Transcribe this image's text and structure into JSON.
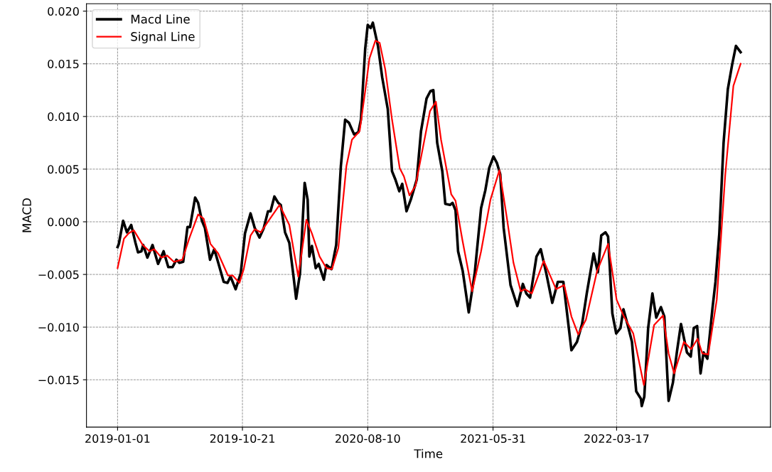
{
  "chart_data": {
    "type": "line",
    "xlabel": "Time",
    "ylabel": "MACD",
    "xlim": [
      "2018-10-20",
      "2023-03-13"
    ],
    "xticks": [
      "2019-01-01",
      "2019-10-21",
      "2020-08-10",
      "2021-05-31",
      "2022-03-17"
    ],
    "ylim": [
      -0.0195,
      0.0207
    ],
    "yticks": [
      {
        "value": -0.015,
        "label": "−0.015"
      },
      {
        "value": -0.01,
        "label": "−0.010"
      },
      {
        "value": -0.005,
        "label": "−0.005"
      },
      {
        "value": 0,
        "label": "0.000"
      },
      {
        "value": 0.005,
        "label": "0.005"
      },
      {
        "value": 0.01,
        "label": "0.010"
      },
      {
        "value": 0.015,
        "label": "0.015"
      },
      {
        "value": 0.02,
        "label": "0.020"
      }
    ],
    "grid": true,
    "legend": "top left",
    "line_style": "solid",
    "series": [
      {
        "name": "Macd Line",
        "color": "#000000",
        "x": [
          "2019-01-01",
          "2019-01-04",
          "2019-01-14",
          "2019-01-23",
          "2019-02-02",
          "2019-02-12",
          "2019-02-18",
          "2019-02-26",
          "2019-03-02",
          "2019-03-12",
          "2019-03-24",
          "2019-04-06",
          "2019-04-19",
          "2019-04-30",
          "2019-05-10",
          "2019-05-19",
          "2019-05-26",
          "2019-06-04",
          "2019-06-14",
          "2019-06-20",
          "2019-07-02",
          "2019-07-09",
          "2019-07-18",
          "2019-07-25",
          "2019-08-06",
          "2019-08-16",
          "2019-08-26",
          "2019-09-07",
          "2019-09-16",
          "2019-09-23",
          "2019-10-05",
          "2019-10-17",
          "2019-10-27",
          "2019-11-09",
          "2019-11-19",
          "2019-11-30",
          "2019-12-10",
          "2019-12-20",
          "2019-12-26",
          "2020-01-04",
          "2020-01-13",
          "2020-01-19",
          "2020-01-29",
          "2020-02-08",
          "2020-02-17",
          "2020-02-24",
          "2020-03-04",
          "2020-03-15",
          "2020-03-22",
          "2020-03-26",
          "2020-04-01",
          "2020-04-10",
          "2020-04-17",
          "2020-04-29",
          "2020-05-05",
          "2020-05-17",
          "2020-05-28",
          "2020-06-08",
          "2020-06-18",
          "2020-06-27",
          "2020-07-09",
          "2020-07-19",
          "2020-07-25",
          "2020-08-04",
          "2020-08-10",
          "2020-08-17",
          "2020-08-22",
          "2020-09-03",
          "2020-09-13",
          "2020-09-26",
          "2020-10-06",
          "2020-10-14",
          "2020-10-23",
          "2020-10-30",
          "2020-11-09",
          "2020-11-19",
          "2020-12-03",
          "2020-12-13",
          "2020-12-26",
          "2021-01-04",
          "2021-01-11",
          "2021-01-20",
          "2021-02-01",
          "2021-02-08",
          "2021-02-19",
          "2021-02-25",
          "2021-03-04",
          "2021-03-10",
          "2021-03-21",
          "2021-04-04",
          "2021-04-18",
          "2021-05-03",
          "2021-05-13",
          "2021-05-22",
          "2021-06-01",
          "2021-06-09",
          "2021-06-17",
          "2021-06-25",
          "2021-07-11",
          "2021-07-27",
          "2021-08-09",
          "2021-08-17",
          "2021-08-26",
          "2021-09-10",
          "2021-09-20",
          "2021-10-03",
          "2021-10-17",
          "2021-10-30",
          "2021-11-12",
          "2021-12-01",
          "2021-12-14",
          "2021-12-26",
          "2022-01-06",
          "2022-01-22",
          "2022-02-01",
          "2022-02-09",
          "2022-02-19",
          "2022-02-25",
          "2022-03-07",
          "2022-03-16",
          "2022-03-26",
          "2022-04-02",
          "2022-04-12",
          "2022-04-22",
          "2022-05-02",
          "2022-05-13",
          "2022-05-15",
          "2022-05-21",
          "2022-05-30",
          "2022-06-09",
          "2022-06-18",
          "2022-06-29",
          "2022-07-07",
          "2022-07-17",
          "2022-07-27",
          "2022-08-06",
          "2022-08-15",
          "2022-08-29",
          "2022-09-07",
          "2022-09-14",
          "2022-09-22",
          "2022-09-30",
          "2022-10-07",
          "2022-10-16",
          "2022-10-28",
          "2022-11-04",
          "2022-11-13",
          "2022-11-23",
          "2022-12-03",
          "2022-12-13",
          "2022-12-22",
          "2023-01-02"
        ],
        "values": [
          -0.0024,
          -0.0021,
          0.0001,
          -0.001,
          -0.0003,
          -0.002,
          -0.0029,
          -0.0028,
          -0.0022,
          -0.0034,
          -0.0022,
          -0.004,
          -0.0028,
          -0.0043,
          -0.0043,
          -0.0036,
          -0.0039,
          -0.0038,
          -0.0005,
          -0.0005,
          0.0023,
          0.0018,
          0.0001,
          -0.0006,
          -0.0036,
          -0.0026,
          -0.004,
          -0.0057,
          -0.0058,
          -0.0052,
          -0.0064,
          -0.0049,
          -0.0011,
          0.0008,
          -0.0006,
          -0.0015,
          -0.0006,
          0.001,
          0.001,
          0.0024,
          0.0018,
          0.0016,
          -0.001,
          -0.002,
          -0.0049,
          -0.0073,
          -0.0049,
          0.0037,
          0.0021,
          -0.0033,
          -0.0023,
          -0.0044,
          -0.004,
          -0.0055,
          -0.0041,
          -0.0045,
          -0.0022,
          0.0053,
          0.0097,
          0.0094,
          0.0083,
          0.0085,
          0.0097,
          0.0164,
          0.0187,
          0.0184,
          0.0189,
          0.0167,
          0.0137,
          0.0107,
          0.0048,
          0.004,
          0.0029,
          0.0036,
          0.001,
          0.0021,
          0.004,
          0.0086,
          0.0117,
          0.0124,
          0.0125,
          0.0075,
          0.0048,
          0.0017,
          0.0016,
          0.0018,
          0.0011,
          -0.0028,
          -0.0047,
          -0.0086,
          -0.0049,
          0.0013,
          0.003,
          0.0051,
          0.0062,
          0.0056,
          0.0045,
          -0.0006,
          -0.006,
          -0.008,
          -0.0059,
          -0.0068,
          -0.0072,
          -0.0033,
          -0.0026,
          -0.0049,
          -0.0077,
          -0.0057,
          -0.0057,
          -0.0122,
          -0.0114,
          -0.0097,
          -0.0068,
          -0.003,
          -0.0048,
          -0.0013,
          -0.001,
          -0.0014,
          -0.0087,
          -0.0106,
          -0.0101,
          -0.0083,
          -0.0098,
          -0.0114,
          -0.0161,
          -0.0168,
          -0.0175,
          -0.0166,
          -0.0101,
          -0.0068,
          -0.0091,
          -0.0081,
          -0.009,
          -0.017,
          -0.0153,
          -0.0122,
          -0.0097,
          -0.0124,
          -0.0128,
          -0.0101,
          -0.0099,
          -0.0144,
          -0.0124,
          -0.013,
          -0.0082,
          -0.0057,
          -0.0011,
          0.0075,
          0.0126,
          0.0149,
          0.0167,
          0.0161
        ]
      },
      {
        "name": "Signal Line",
        "color": "#ff0000",
        "x": [
          "2019-01-01",
          "2019-01-16",
          "2019-01-27",
          "2019-02-08",
          "2019-03-01",
          "2019-03-17",
          "2019-03-28",
          "2019-04-14",
          "2019-04-27",
          "2019-05-13",
          "2019-06-02",
          "2019-06-18",
          "2019-07-09",
          "2019-07-22",
          "2019-08-07",
          "2019-08-25",
          "2019-09-17",
          "2019-09-28",
          "2019-10-14",
          "2019-10-24",
          "2019-11-09",
          "2019-11-19",
          "2019-12-03",
          "2019-12-23",
          "2020-01-16",
          "2020-02-08",
          "2020-02-29",
          "2020-03-19",
          "2020-04-01",
          "2020-04-19",
          "2020-05-05",
          "2020-05-18",
          "2020-06-02",
          "2020-06-21",
          "2020-07-04",
          "2020-07-22",
          "2020-08-04",
          "2020-08-14",
          "2020-08-28",
          "2020-09-07",
          "2020-09-20",
          "2020-10-06",
          "2020-10-24",
          "2020-11-03",
          "2020-11-16",
          "2020-11-30",
          "2020-12-13",
          "2021-01-03",
          "2021-01-17",
          "2021-01-29",
          "2021-02-22",
          "2021-03-04",
          "2021-03-20",
          "2021-04-12",
          "2021-05-03",
          "2021-05-25",
          "2021-06-15",
          "2021-07-02",
          "2021-07-18",
          "2021-08-04",
          "2021-08-14",
          "2021-08-30",
          "2021-09-27",
          "2021-10-26",
          "2021-11-14",
          "2021-12-01",
          "2021-12-17",
          "2022-01-04",
          "2022-01-30",
          "2022-02-25",
          "2022-03-17",
          "2022-04-02",
          "2022-04-25",
          "2022-05-20",
          "2022-06-13",
          "2022-07-04",
          "2022-07-17",
          "2022-07-30",
          "2022-08-22",
          "2022-09-08",
          "2022-09-23",
          "2022-10-04",
          "2022-10-18",
          "2022-11-07",
          "2022-11-27",
          "2022-12-16",
          "2023-01-02"
        ],
        "values": [
          -0.0044,
          -0.0016,
          -0.0011,
          -0.0008,
          -0.0022,
          -0.0028,
          -0.0026,
          -0.0034,
          -0.0032,
          -0.0038,
          -0.0036,
          -0.0016,
          0.0007,
          0.0003,
          -0.0021,
          -0.003,
          -0.0051,
          -0.0051,
          -0.0058,
          -0.0045,
          -0.0013,
          -0.0007,
          -0.001,
          0.0002,
          0.0016,
          -0.0003,
          -0.0052,
          0.0002,
          -0.0011,
          -0.0033,
          -0.0044,
          -0.0045,
          -0.0025,
          0.0053,
          0.0078,
          0.0086,
          0.0124,
          0.0155,
          0.0172,
          0.017,
          0.0145,
          0.0097,
          0.0051,
          0.0043,
          0.0025,
          0.0034,
          0.0061,
          0.0105,
          0.0114,
          0.0078,
          0.0026,
          0.002,
          -0.0017,
          -0.0066,
          -0.0028,
          0.0021,
          0.0049,
          0.0005,
          -0.0039,
          -0.0066,
          -0.0064,
          -0.0068,
          -0.0037,
          -0.0064,
          -0.006,
          -0.009,
          -0.0107,
          -0.0093,
          -0.0047,
          -0.0021,
          -0.0074,
          -0.0089,
          -0.0106,
          -0.0155,
          -0.0098,
          -0.0089,
          -0.0125,
          -0.0144,
          -0.0114,
          -0.0121,
          -0.0111,
          -0.0125,
          -0.0126,
          -0.0074,
          0.0045,
          0.0129,
          0.015
        ]
      }
    ]
  }
}
